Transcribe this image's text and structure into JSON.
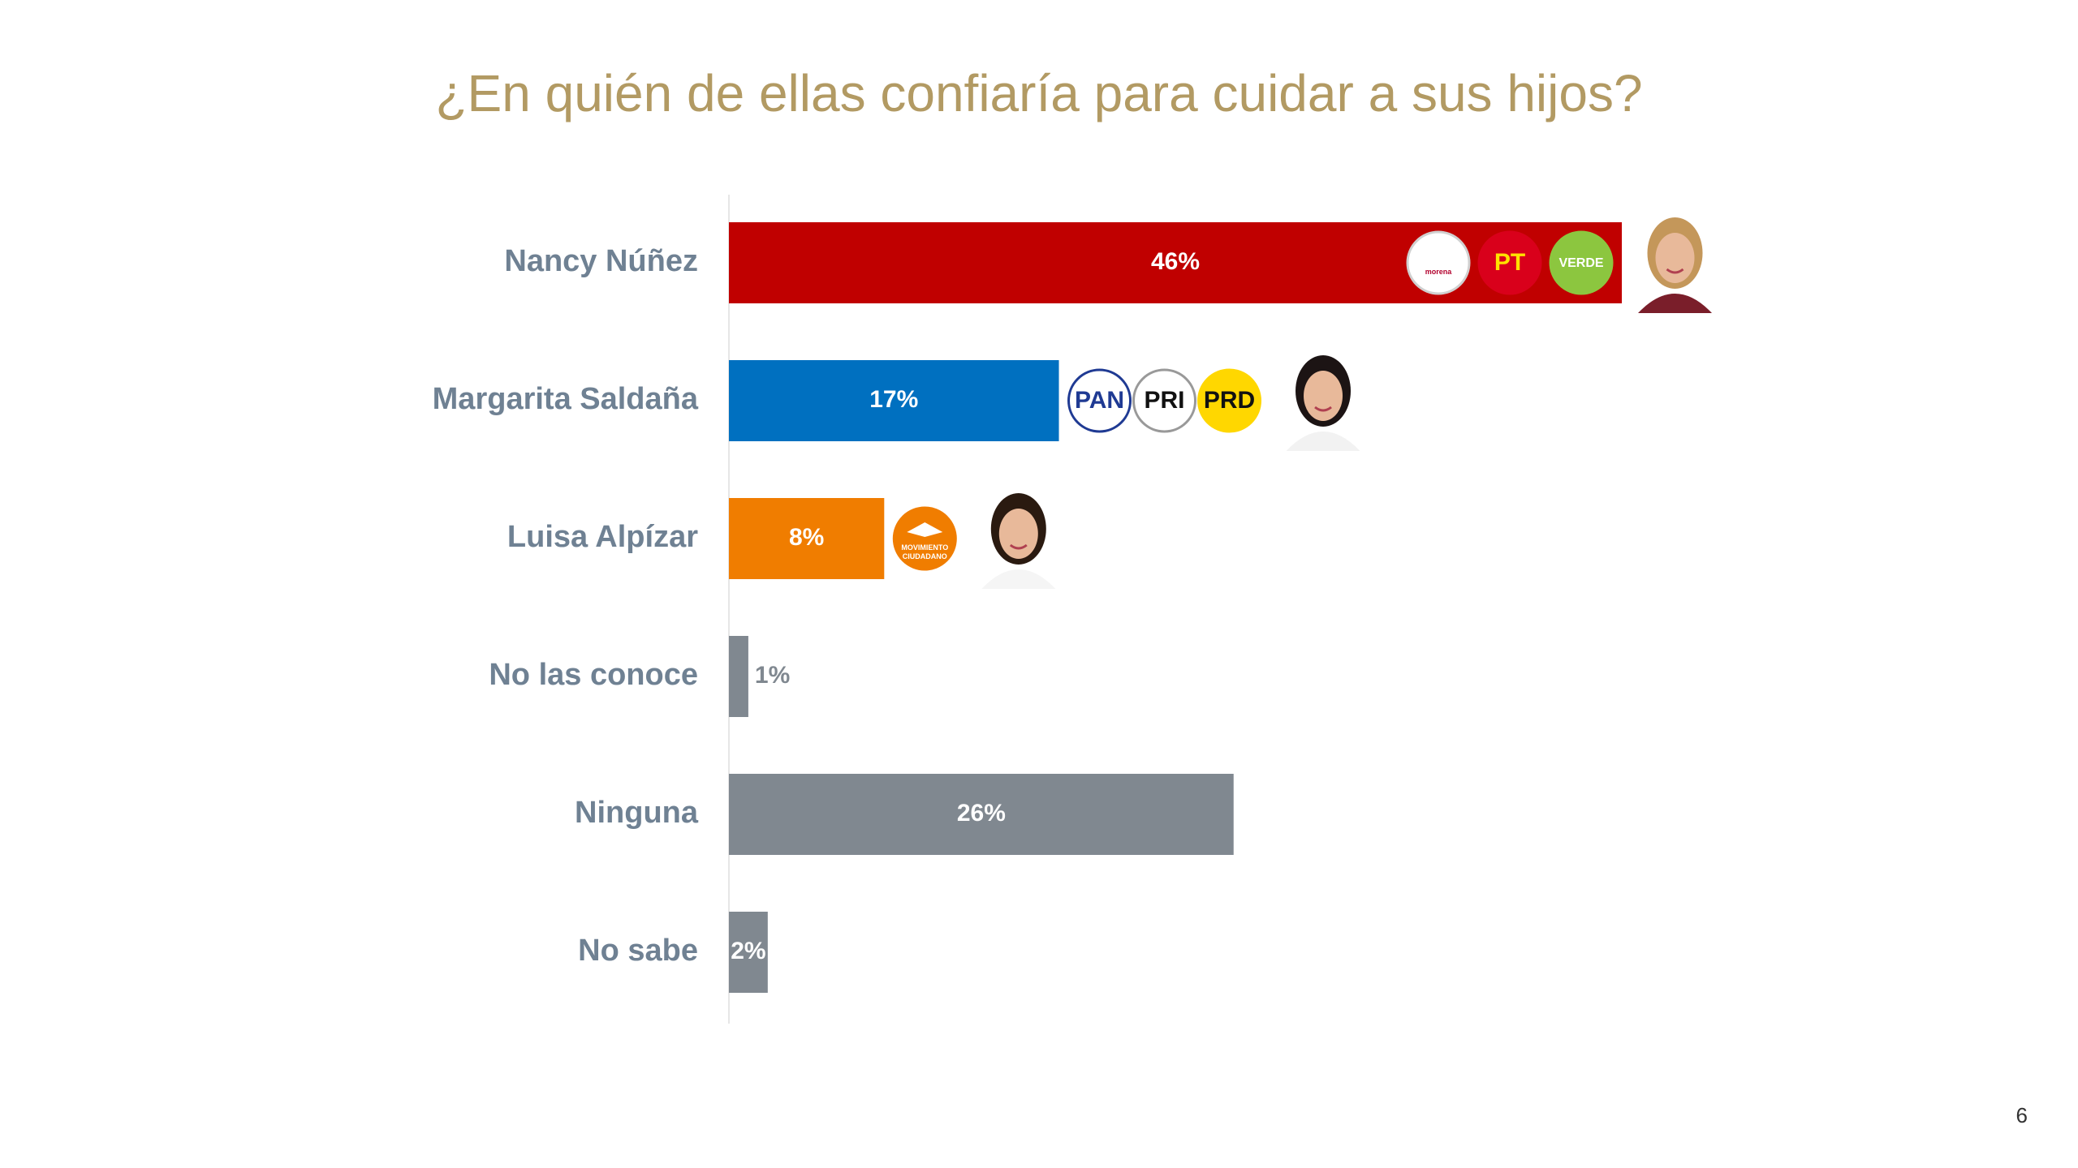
{
  "page_number": "6",
  "chart_data": {
    "type": "bar",
    "orientation": "horizontal",
    "title": "¿En quién de ellas confiaría para cuidar a sus hijos?",
    "xlabel": "",
    "ylabel": "",
    "unit": "%",
    "xlim": [
      0,
      46
    ],
    "grid": false,
    "legend": "none",
    "categories": [
      "Nancy Núñez",
      "Margarita Saldaña",
      "Luisa Alpízar",
      "No las conoce",
      "Ninguna",
      "No sabe"
    ],
    "values": [
      46,
      17,
      8,
      1,
      26,
      2
    ],
    "data_labels": [
      "46%",
      "17%",
      "8%",
      "1%",
      "26%",
      "2%"
    ],
    "colors": [
      "#c00000",
      "#0070c0",
      "#f07d00",
      "#808890",
      "#808890",
      "#808890"
    ],
    "label_color": "#6f8193",
    "party_logos": [
      [
        {
          "icon": "morena-logo",
          "text": "morena",
          "bg": "#ffffff",
          "fg": "#b2002d",
          "ring": "#d0d0d0"
        },
        {
          "icon": "pt-logo",
          "text": "PT",
          "bg": "#d9001b",
          "fg": "#ffe100",
          "ring": "#d9001b"
        },
        {
          "icon": "verde-logo",
          "text": "VERDE",
          "bg": "#8cc63f",
          "fg": "#ffffff",
          "ring": "#8cc63f"
        }
      ],
      [
        {
          "icon": "pan-logo",
          "text": "PAN",
          "bg": "#ffffff",
          "fg": "#1f3a93",
          "ring": "#1f3a93"
        },
        {
          "icon": "pri-logo",
          "text": "PRI",
          "bg": "#ffffff",
          "fg": "#111111",
          "ring": "#999999"
        },
        {
          "icon": "prd-logo",
          "text": "PRD",
          "bg": "#ffd700",
          "fg": "#111111",
          "ring": "#ffd700"
        }
      ],
      [
        {
          "icon": "movimiento-ciudadano-logo",
          "text": "MOVIMIENTO CIUDADANO",
          "bg": "#f07d00",
          "fg": "#ffffff",
          "ring": "#f07d00"
        }
      ],
      [],
      [],
      []
    ],
    "photos": [
      {
        "icon": "candidate-photo-icon",
        "hair": "#c4975a",
        "top": "#7a1e2a"
      },
      {
        "icon": "candidate-photo-icon",
        "hair": "#1c1414",
        "top": "#f2f2f2"
      },
      {
        "icon": "candidate-photo-icon",
        "hair": "#2a1a10",
        "top": "#f5f5f5"
      },
      null,
      null,
      null
    ]
  }
}
